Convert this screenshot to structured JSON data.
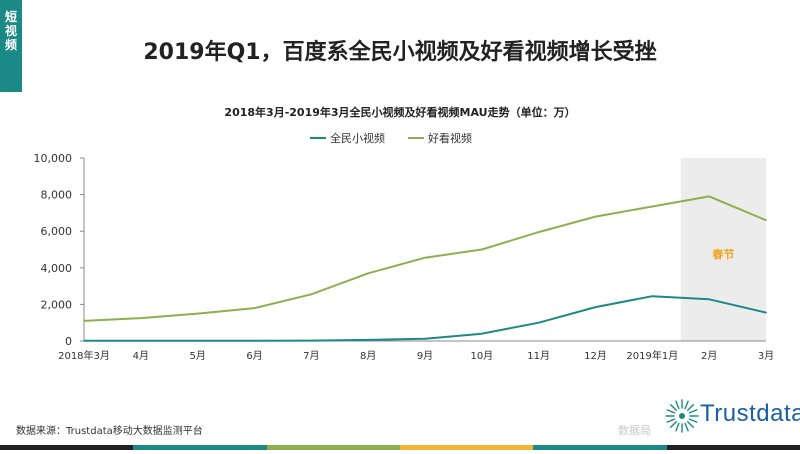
{
  "side_tab": {
    "label": "短视频",
    "color": "#1b8a87"
  },
  "page_title": "2019年Q1，百度系全民小视频及好看视频增长受挫",
  "source_note": "数据来源：Trustdata移动大数据监测平台",
  "watermark": "数据局",
  "logo": {
    "text": "Trustdata",
    "color": "#1a5fa8",
    "icon": "sunburst-icon"
  },
  "bottom_bar_colors": [
    "#222222",
    "#1b8a87",
    "#8db04e",
    "#f2b632",
    "#1b8a87",
    "#222222"
  ],
  "chart_data": {
    "type": "line",
    "title": "2018年3月-2019年3月全民小视频及好看视频MAU走势（单位：万）",
    "xlabel": "",
    "ylabel": "",
    "categories": [
      "2018年3月",
      "4月",
      "5月",
      "6月",
      "7月",
      "8月",
      "9月",
      "10月",
      "11月",
      "12月",
      "2019年1月",
      "2月",
      "3月"
    ],
    "ylim": [
      0,
      10000
    ],
    "yticks": [
      "0",
      "2,000",
      "4,000",
      "6,000",
      "8,000",
      "10,000"
    ],
    "ytick_values": [
      0,
      2000,
      4000,
      6000,
      8000,
      10000
    ],
    "series": [
      {
        "name": "全民小视频",
        "color": "#1b8a87",
        "values": [
          10,
          10,
          10,
          10,
          20,
          60,
          120,
          400,
          1000,
          1850,
          2450,
          2280,
          1550
        ]
      },
      {
        "name": "好看视频",
        "color": "#8db04e",
        "values": [
          1100,
          1250,
          1500,
          1800,
          2550,
          3700,
          4550,
          5000,
          5950,
          6800,
          7350,
          7900,
          6600
        ]
      }
    ],
    "legend_position": "top-center",
    "grid": false,
    "highlight": {
      "start_index": 10.5,
      "end_index": 12,
      "label": "春节",
      "label_color": "#f2a21b",
      "fill": "#ececec"
    }
  }
}
